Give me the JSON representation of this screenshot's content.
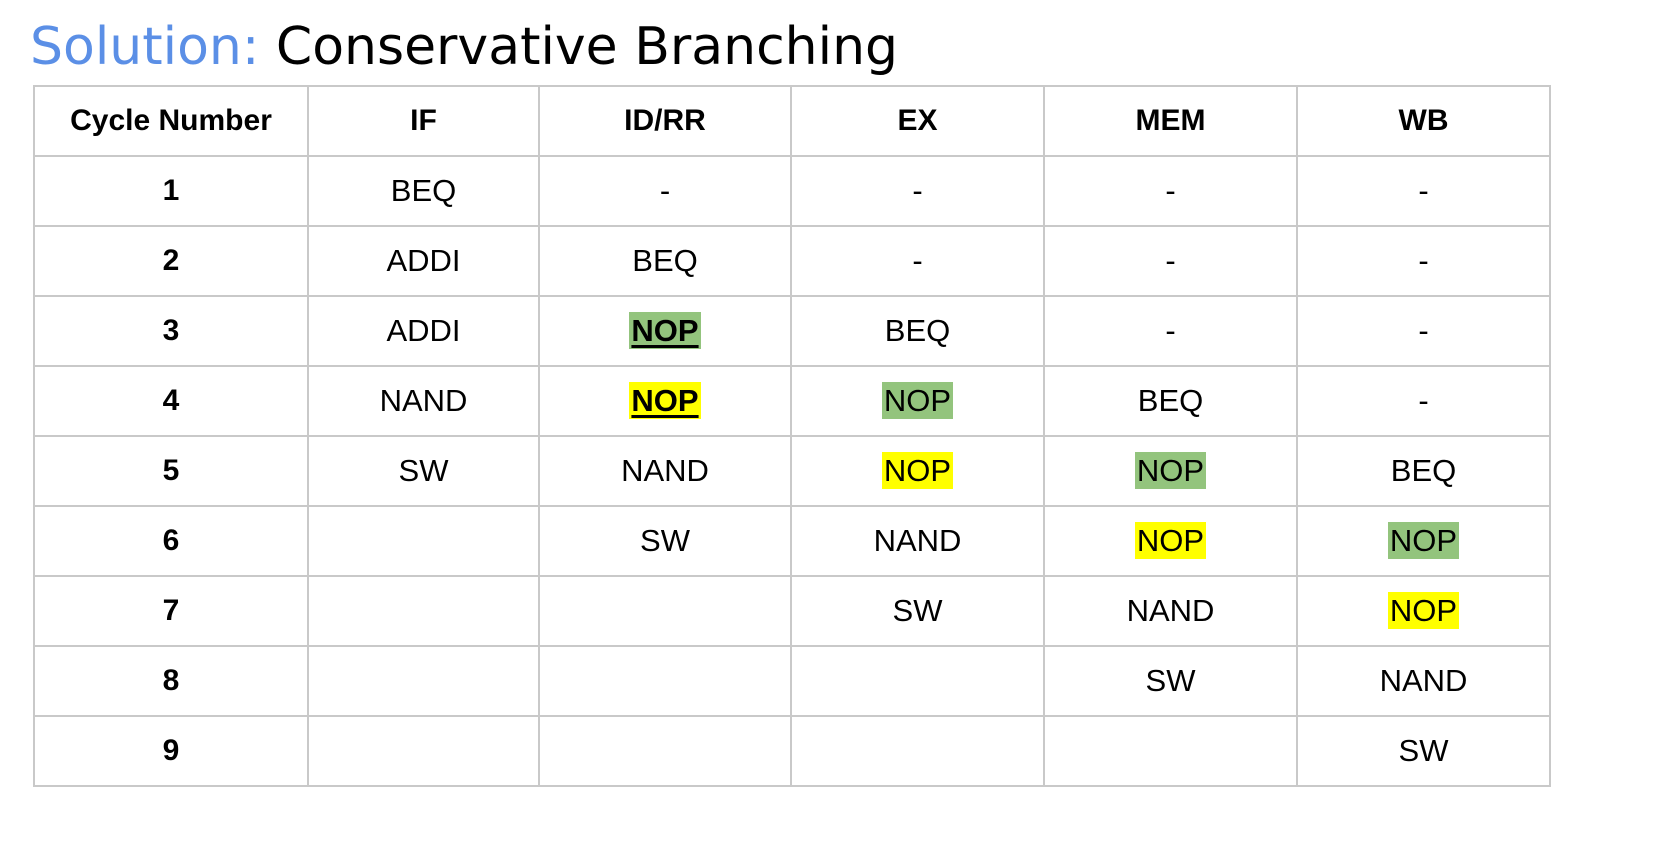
{
  "title": {
    "prefix": "Solution:",
    "text": "Conservative Branching"
  },
  "colors": {
    "title_accent": "#5b8fe6",
    "highlight_green": "#93c47d",
    "highlight_yellow": "#ffff00",
    "grid": "#c9c9c9"
  },
  "table": {
    "headers": [
      "Cycle Number",
      "IF",
      "ID/RR",
      "EX",
      "MEM",
      "WB"
    ],
    "rows": [
      {
        "cycle": "1",
        "cells": [
          {
            "text": "BEQ"
          },
          {
            "text": "-"
          },
          {
            "text": "-"
          },
          {
            "text": "-"
          },
          {
            "text": "-"
          }
        ]
      },
      {
        "cycle": "2",
        "cells": [
          {
            "text": "ADDI"
          },
          {
            "text": "BEQ"
          },
          {
            "text": "-"
          },
          {
            "text": "-"
          },
          {
            "text": "-"
          }
        ]
      },
      {
        "cycle": "3",
        "cells": [
          {
            "text": "ADDI"
          },
          {
            "text": "NOP",
            "highlight": "green",
            "strong": true
          },
          {
            "text": "BEQ"
          },
          {
            "text": "-"
          },
          {
            "text": "-"
          }
        ]
      },
      {
        "cycle": "4",
        "cells": [
          {
            "text": "NAND"
          },
          {
            "text": "NOP",
            "highlight": "yellow",
            "strong": true
          },
          {
            "text": "NOP",
            "highlight": "green"
          },
          {
            "text": "BEQ"
          },
          {
            "text": "-"
          }
        ]
      },
      {
        "cycle": "5",
        "cells": [
          {
            "text": "SW"
          },
          {
            "text": "NAND"
          },
          {
            "text": "NOP",
            "highlight": "yellow"
          },
          {
            "text": "NOP",
            "highlight": "green"
          },
          {
            "text": "BEQ"
          }
        ]
      },
      {
        "cycle": "6",
        "cells": [
          {
            "text": ""
          },
          {
            "text": "SW"
          },
          {
            "text": "NAND"
          },
          {
            "text": "NOP",
            "highlight": "yellow"
          },
          {
            "text": "NOP",
            "highlight": "green"
          }
        ]
      },
      {
        "cycle": "7",
        "cells": [
          {
            "text": ""
          },
          {
            "text": ""
          },
          {
            "text": "SW"
          },
          {
            "text": "NAND"
          },
          {
            "text": "NOP",
            "highlight": "yellow"
          }
        ]
      },
      {
        "cycle": "8",
        "cells": [
          {
            "text": ""
          },
          {
            "text": ""
          },
          {
            "text": ""
          },
          {
            "text": "SW"
          },
          {
            "text": "NAND"
          }
        ]
      },
      {
        "cycle": "9",
        "cells": [
          {
            "text": ""
          },
          {
            "text": ""
          },
          {
            "text": ""
          },
          {
            "text": ""
          },
          {
            "text": "SW"
          }
        ]
      }
    ]
  }
}
